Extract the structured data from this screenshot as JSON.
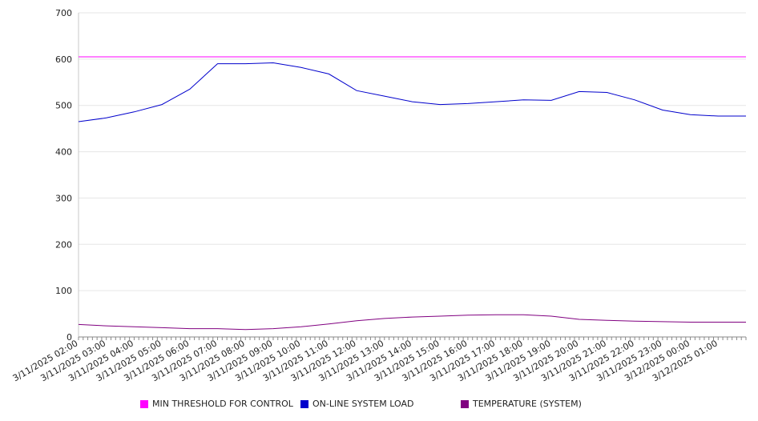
{
  "chart_data": {
    "type": "line",
    "title": "",
    "xlabel": "",
    "ylabel": "",
    "ylim": [
      0,
      700
    ],
    "yticks": [
      "0",
      "100",
      "200",
      "300",
      "400",
      "500",
      "600",
      "700"
    ],
    "grid": true,
    "legend_position": "bottom",
    "x_tick_labels": [
      "3/11/2025 02:00",
      "3/11/2025 03:00",
      "3/11/2025 04:00",
      "3/11/2025 05:00",
      "3/11/2025 06:00",
      "3/11/2025 07:00",
      "3/11/2025 08:00",
      "3/11/2025 09:00",
      "3/11/2025 10:00",
      "3/11/2025 11:00",
      "3/11/2025 12:00",
      "3/11/2025 13:00",
      "3/11/2025 14:00",
      "3/11/2025 15:00",
      "3/11/2025 16:00",
      "3/11/2025 17:00",
      "3/11/2025 18:00",
      "3/11/2025 19:00",
      "3/11/2025 20:00",
      "3/11/2025 21:00",
      "3/11/2025 22:00",
      "3/11/2025 23:00",
      "3/12/2025 00:00",
      "3/12/2025 01:00"
    ],
    "x": [
      "3/11/2025 02:00",
      "3/11/2025 03:00",
      "3/11/2025 04:00",
      "3/11/2025 05:00",
      "3/11/2025 06:00",
      "3/11/2025 07:00",
      "3/11/2025 08:00",
      "3/11/2025 09:00",
      "3/11/2025 10:00",
      "3/11/2025 11:00",
      "3/11/2025 12:00",
      "3/11/2025 13:00",
      "3/11/2025 14:00",
      "3/11/2025 15:00",
      "3/11/2025 16:00",
      "3/11/2025 17:00",
      "3/11/2025 18:00",
      "3/11/2025 19:00",
      "3/11/2025 20:00",
      "3/11/2025 21:00",
      "3/11/2025 22:00",
      "3/11/2025 23:00",
      "3/12/2025 00:00",
      "3/12/2025 01:00",
      "3/12/2025 02:00"
    ],
    "series": [
      {
        "name": "MIN THRESHOLD FOR CONTROL",
        "color": "#ff00ff",
        "values": [
          605,
          605,
          605,
          605,
          605,
          605,
          605,
          605,
          605,
          605,
          605,
          605,
          605,
          605,
          605,
          605,
          605,
          605,
          605,
          605,
          605,
          605,
          605,
          605,
          605
        ]
      },
      {
        "name": "ON-LINE SYSTEM LOAD",
        "color": "#0000cc",
        "values": [
          465,
          473,
          486,
          502,
          535,
          590,
          590,
          592,
          582,
          568,
          532,
          520,
          508,
          502,
          504,
          508,
          512,
          511,
          530,
          528,
          512,
          490,
          480,
          477,
          477
        ]
      },
      {
        "name": "TEMPERATURE (SYSTEM)",
        "color": "#800080",
        "values": [
          27,
          24,
          22,
          20,
          18,
          18,
          16,
          18,
          22,
          28,
          35,
          40,
          43,
          45,
          47,
          48,
          48,
          45,
          38,
          36,
          34,
          33,
          32,
          32,
          32
        ]
      }
    ]
  }
}
